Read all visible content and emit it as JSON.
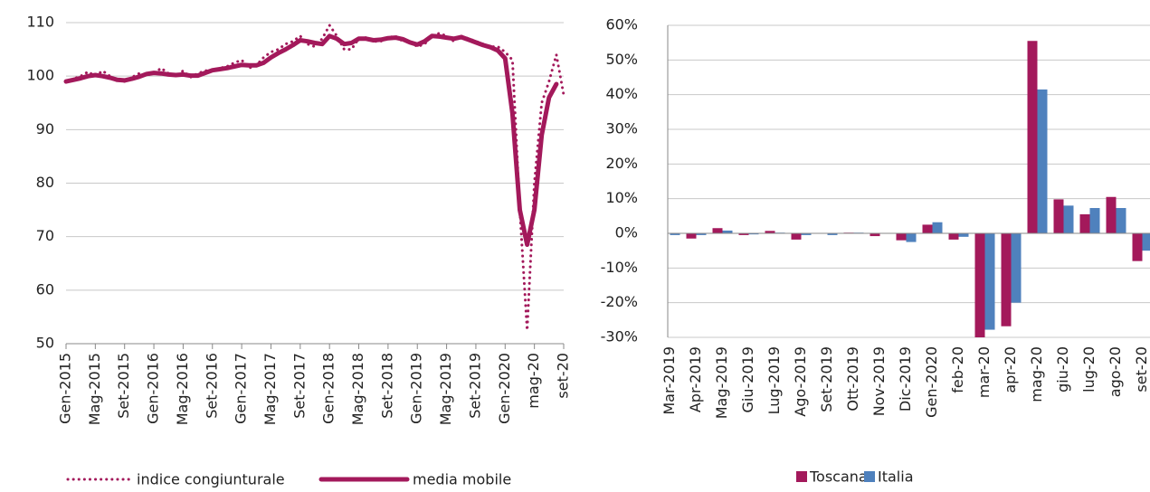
{
  "chart_data": [
    {
      "type": "line",
      "categories": [
        "Gen-2015",
        null,
        null,
        null,
        "Mag-2015",
        null,
        null,
        null,
        "Set-2015",
        null,
        null,
        null,
        "Gen-2016",
        null,
        null,
        null,
        "Mag-2016",
        null,
        null,
        null,
        "Set-2016",
        null,
        null,
        null,
        "Gen-2017",
        null,
        null,
        null,
        "Mag-2017",
        null,
        null,
        null,
        "Set-2017",
        null,
        null,
        null,
        "Gen-2018",
        null,
        null,
        null,
        "Mag-2018",
        null,
        null,
        null,
        "Set-2018",
        null,
        null,
        null,
        "Gen-2019",
        null,
        null,
        null,
        "Mag-2019",
        null,
        null,
        null,
        "Set-2019",
        null,
        null,
        null,
        "Gen-2020",
        null,
        null,
        null,
        "mag-20",
        null,
        null,
        null,
        "set-20"
      ],
      "series": [
        {
          "name": "indice congiunturale",
          "color": "#a3195b",
          "style": "dotted",
          "values": [
            99,
            99.5,
            100,
            100.8,
            100,
            101,
            100,
            99.2,
            99,
            99.8,
            100.5,
            100.2,
            100.5,
            101.5,
            100.5,
            100,
            101,
            99.8,
            100.5,
            101,
            101.2,
            101.5,
            101.8,
            102.5,
            103,
            101.5,
            102,
            103.5,
            104.5,
            105,
            106,
            106.5,
            107.5,
            106,
            105.5,
            107,
            109.5,
            107.5,
            105,
            105,
            107,
            107.2,
            106.5,
            106.5,
            107.2,
            107.5,
            106.5,
            106.5,
            105.5,
            106,
            107.5,
            108,
            107.5,
            106.5,
            107.5,
            107,
            106.5,
            106,
            105.5,
            105.5,
            104.5,
            103,
            75,
            52.5,
            80,
            95,
            99,
            104,
            96.5
          ]
        },
        {
          "name": "media mobile",
          "color": "#a3195b",
          "style": "solid",
          "values": [
            99,
            99.3,
            99.6,
            100,
            100.2,
            100,
            99.7,
            99.3,
            99.2,
            99.5,
            99.9,
            100.4,
            100.6,
            100.5,
            100.3,
            100.2,
            100.3,
            100.1,
            100.1,
            100.6,
            101.1,
            101.3,
            101.5,
            101.8,
            102.1,
            102,
            102,
            102.5,
            103.5,
            104.3,
            105,
            105.8,
            106.7,
            106.5,
            106.2,
            106,
            107.5,
            107,
            106,
            106.2,
            107,
            107,
            106.7,
            106.8,
            107.1,
            107.2,
            106.9,
            106.3,
            105.9,
            106.5,
            107.5,
            107.4,
            107.2,
            107,
            107.3,
            106.8,
            106.3,
            105.8,
            105.4,
            104.8,
            103.3,
            93,
            75,
            68.5,
            75,
            89,
            96,
            98.5,
            null
          ]
        }
      ],
      "ylim": [
        50,
        110
      ],
      "yticks": [
        50,
        60,
        70,
        80,
        90,
        100,
        110
      ],
      "grid": true
    },
    {
      "type": "bar",
      "categories": [
        "Mar-2019",
        "Apr-2019",
        "Mag-2019",
        "Giu-2019",
        "Lug-2019",
        "Ago-2019",
        "Set-2019",
        "Ott-2019",
        "Nov-2019",
        "Dic-2019",
        "Gen-2020",
        "feb-20",
        "mar-20",
        "apr-20",
        "mag-20",
        "giu-20",
        "lug-20",
        "ago-20",
        "set-20"
      ],
      "series": [
        {
          "name": "Toscana",
          "color": "#a3195b",
          "values": [
            0,
            -1.5,
            1.5,
            -0.5,
            0.7,
            -1.8,
            0,
            0.2,
            -0.8,
            -2,
            2.5,
            -1.8,
            -30,
            -26.8,
            55.5,
            9.8,
            5.5,
            10.5,
            -8
          ]
        },
        {
          "name": "Italia",
          "color": "#4f81bd",
          "values": [
            -0.5,
            -0.5,
            0.8,
            -0.3,
            0.2,
            -0.5,
            -0.5,
            0.2,
            0,
            -2.5,
            3.2,
            -1,
            -27.8,
            -20,
            41.5,
            8,
            7.3,
            7.3,
            -5
          ]
        }
      ],
      "ylim": [
        -30,
        60
      ],
      "yticks": [
        {
          "value": -30,
          "label": "-30%"
        },
        {
          "value": -20,
          "label": "-20%"
        },
        {
          "value": -10,
          "label": "-10%"
        },
        {
          "value": 0,
          "label": "0%"
        },
        {
          "value": 10,
          "label": "10%"
        },
        {
          "value": 20,
          "label": "20%"
        },
        {
          "value": 30,
          "label": "30%"
        },
        {
          "value": 40,
          "label": "40%"
        },
        {
          "value": 50,
          "label": "50%"
        },
        {
          "value": 60,
          "label": "60%"
        }
      ],
      "grid": true
    }
  ]
}
